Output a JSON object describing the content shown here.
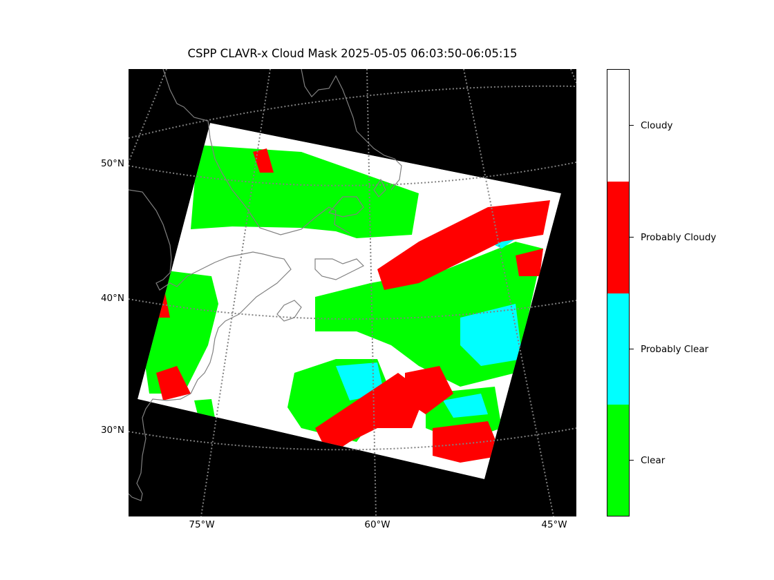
{
  "title": "CSPP CLAVR-x Cloud Mask 2025-05-05 06:03:50-06:05:15",
  "map": {
    "background_color": "#000000",
    "coastline_color": "#808080",
    "gridline_color": "#808080",
    "lat_labels": [
      "50°N",
      "40°N",
      "30°N"
    ],
    "lon_labels": [
      "75°W",
      "60°W",
      "45°W"
    ]
  },
  "colorbar": {
    "categories": [
      {
        "label": "Cloudy",
        "color": "#ffffff"
      },
      {
        "label": "Probably Cloudy",
        "color": "#ff0000"
      },
      {
        "label": "Probably Clear",
        "color": "#00ffff"
      },
      {
        "label": "Clear",
        "color": "#00ff00"
      }
    ]
  }
}
